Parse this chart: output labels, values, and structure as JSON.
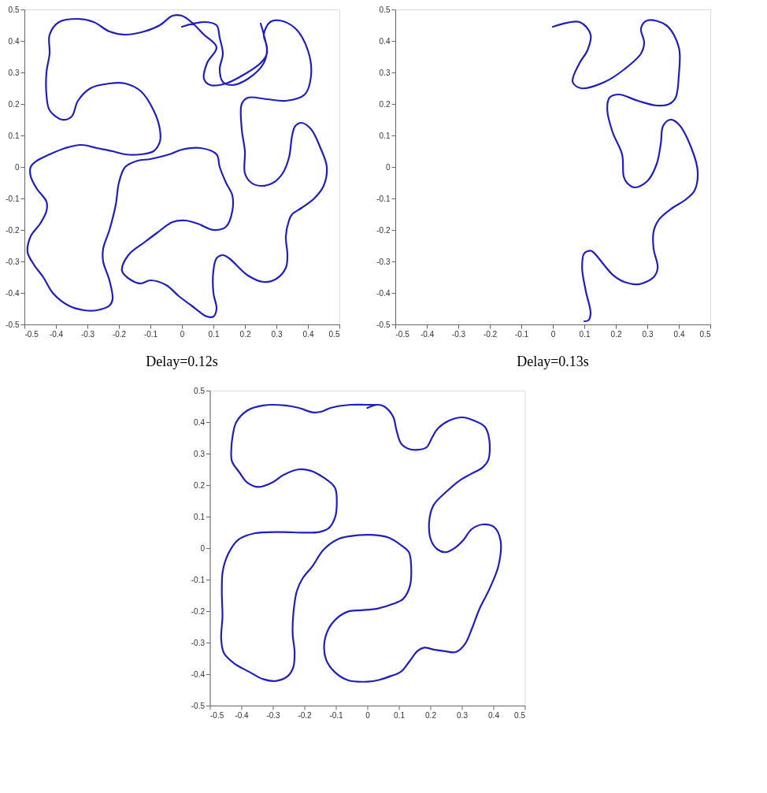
{
  "chart_data": [
    {
      "type": "line",
      "subtitle": "Delay=0.12s",
      "xlim": [
        -0.5,
        0.5
      ],
      "ylim": [
        -0.5,
        0.5
      ],
      "xticks": [
        -0.5,
        -0.4,
        -0.3,
        -0.2,
        -0.1,
        0,
        0.1,
        0.2,
        0.3,
        0.4,
        0.5
      ],
      "yticks": [
        -0.5,
        -0.4,
        -0.3,
        -0.2,
        -0.1,
        0,
        0.1,
        0.2,
        0.3,
        0.4,
        0.5
      ],
      "grid": false,
      "marker": "none",
      "line_style": "solid",
      "series": [
        {
          "color": "#1f1fc0",
          "x": [
            0.0,
            0.07,
            0.11,
            0.12,
            0.13,
            0.12,
            0.13,
            0.16,
            0.21,
            0.26,
            0.27,
            0.26,
            0.28,
            0.31,
            0.36,
            0.4,
            0.41,
            0.39,
            0.33,
            0.27,
            0.21,
            0.19,
            0.19,
            0.2,
            0.2,
            0.22,
            0.25,
            0.29,
            0.32,
            0.34,
            0.35,
            0.36,
            0.38,
            0.41,
            0.44,
            0.46,
            0.45,
            0.42,
            0.38,
            0.35,
            0.34,
            0.33,
            0.335,
            0.33,
            0.3,
            0.26,
            0.21,
            0.15,
            0.13,
            0.11,
            0.1,
            0.1,
            0.11,
            0.1,
            0.08,
            0.03,
            -0.01,
            -0.05,
            -0.1,
            -0.13,
            -0.16,
            -0.19,
            -0.17,
            -0.12,
            -0.08,
            -0.03,
            0.01,
            0.05,
            0.1,
            0.14,
            0.16,
            0.16,
            0.14,
            0.12,
            0.11,
            0.06,
            0.0,
            -0.04,
            -0.1,
            -0.14,
            -0.18,
            -0.2,
            -0.21,
            -0.23,
            -0.25,
            -0.25,
            -0.23,
            -0.22,
            -0.23,
            -0.27,
            -0.31,
            -0.36,
            -0.41,
            -0.44,
            -0.47,
            -0.49,
            -0.48,
            -0.45,
            -0.43,
            -0.43,
            -0.46,
            -0.48,
            -0.48,
            -0.46,
            -0.42,
            -0.37,
            -0.32,
            -0.27,
            -0.22,
            -0.18,
            -0.13,
            -0.09,
            -0.07,
            -0.07,
            -0.09,
            -0.13,
            -0.18,
            -0.23,
            -0.29,
            -0.33,
            -0.35,
            -0.38,
            -0.42,
            -0.43,
            -0.43,
            -0.42,
            -0.42,
            -0.39,
            -0.33,
            -0.28,
            -0.23,
            -0.18,
            -0.12,
            -0.07,
            -0.03,
            0.0,
            0.03,
            0.07,
            0.11,
            0.08,
            0.07,
            0.09,
            0.14,
            0.2,
            0.25,
            0.27,
            0.26,
            0.25
          ],
          "values": [
            0.445,
            0.46,
            0.45,
            0.41,
            0.36,
            0.31,
            0.27,
            0.26,
            0.28,
            0.33,
            0.38,
            0.42,
            0.46,
            0.465,
            0.44,
            0.37,
            0.29,
            0.23,
            0.21,
            0.215,
            0.22,
            0.2,
            0.12,
            0.05,
            -0.02,
            -0.05,
            -0.06,
            -0.05,
            -0.02,
            0.03,
            0.1,
            0.13,
            0.14,
            0.12,
            0.06,
            0.0,
            -0.06,
            -0.1,
            -0.13,
            -0.15,
            -0.17,
            -0.22,
            -0.28,
            -0.32,
            -0.355,
            -0.365,
            -0.345,
            -0.29,
            -0.28,
            -0.29,
            -0.33,
            -0.4,
            -0.45,
            -0.475,
            -0.475,
            -0.44,
            -0.41,
            -0.375,
            -0.36,
            -0.37,
            -0.36,
            -0.33,
            -0.28,
            -0.24,
            -0.21,
            -0.175,
            -0.17,
            -0.18,
            -0.2,
            -0.19,
            -0.14,
            -0.09,
            -0.05,
            0.0,
            0.04,
            0.06,
            0.055,
            0.04,
            0.025,
            0.02,
            0.0,
            -0.05,
            -0.12,
            -0.2,
            -0.26,
            -0.3,
            -0.36,
            -0.42,
            -0.44,
            -0.455,
            -0.455,
            -0.44,
            -0.4,
            -0.35,
            -0.31,
            -0.27,
            -0.22,
            -0.18,
            -0.14,
            -0.11,
            -0.07,
            -0.03,
            0.0,
            0.02,
            0.04,
            0.06,
            0.07,
            0.06,
            0.05,
            0.04,
            0.04,
            0.05,
            0.08,
            0.12,
            0.18,
            0.24,
            0.265,
            0.265,
            0.25,
            0.21,
            0.16,
            0.15,
            0.18,
            0.23,
            0.3,
            0.36,
            0.42,
            0.46,
            0.47,
            0.46,
            0.43,
            0.42,
            0.43,
            0.45,
            0.48,
            0.48,
            0.46,
            0.42,
            0.38,
            0.33,
            0.28,
            0.26,
            0.265,
            0.295,
            0.33,
            0.36,
            0.42,
            0.455
          ]
        }
      ]
    },
    {
      "type": "line",
      "subtitle": "Delay=0.13s",
      "xlim": [
        -0.5,
        0.5
      ],
      "ylim": [
        -0.5,
        0.5
      ],
      "xticks": [
        -0.5,
        -0.4,
        -0.3,
        -0.2,
        -0.1,
        0,
        0.1,
        0.2,
        0.3,
        0.4,
        0.5
      ],
      "yticks": [
        -0.5,
        -0.4,
        -0.3,
        -0.2,
        -0.1,
        0,
        0.1,
        0.2,
        0.3,
        0.4,
        0.5
      ],
      "grid": false,
      "marker": "none",
      "line_style": "solid",
      "series": [
        {
          "color": "#1f1fc0",
          "x": [
            0.0,
            0.085,
            0.12,
            0.11,
            0.085,
            0.063,
            0.09,
            0.165,
            0.227,
            0.28,
            0.29,
            0.28,
            0.3,
            0.36,
            0.4,
            0.4,
            0.39,
            0.37,
            0.33,
            0.27,
            0.21,
            0.18,
            0.173,
            0.19,
            0.22,
            0.225,
            0.235,
            0.26,
            0.3,
            0.33,
            0.343,
            0.35,
            0.373,
            0.4,
            0.44,
            0.46,
            0.45,
            0.42,
            0.38,
            0.337,
            0.32,
            0.32,
            0.333,
            0.32,
            0.274,
            0.227,
            0.19,
            0.132,
            0.12,
            0.1,
            0.093,
            0.105,
            0.12,
            0.113,
            0.1
          ],
          "values": [
            0.445,
            0.46,
            0.42,
            0.37,
            0.33,
            0.27,
            0.25,
            0.27,
            0.31,
            0.36,
            0.395,
            0.44,
            0.465,
            0.45,
            0.38,
            0.29,
            0.22,
            0.2,
            0.195,
            0.21,
            0.23,
            0.22,
            0.18,
            0.11,
            0.04,
            -0.03,
            -0.05,
            -0.065,
            -0.045,
            0.01,
            0.075,
            0.13,
            0.15,
            0.135,
            0.06,
            -0.015,
            -0.075,
            -0.105,
            -0.13,
            -0.167,
            -0.205,
            -0.26,
            -0.32,
            -0.35,
            -0.372,
            -0.365,
            -0.342,
            -0.274,
            -0.266,
            -0.274,
            -0.32,
            -0.395,
            -0.464,
            -0.487,
            -0.49
          ]
        }
      ]
    },
    {
      "type": "line",
      "xlim": [
        -0.5,
        0.5
      ],
      "ylim": [
        -0.5,
        0.5
      ],
      "xticks": [
        -0.5,
        -0.4,
        -0.3,
        -0.2,
        -0.1,
        0,
        0.1,
        0.2,
        0.3,
        0.4,
        0.5
      ],
      "yticks": [
        -0.5,
        -0.4,
        -0.3,
        -0.2,
        -0.1,
        0,
        0.1,
        0.2,
        0.3,
        0.4,
        0.5
      ],
      "grid": false,
      "marker": "none",
      "line_style": "solid",
      "series": [
        {
          "color": "#1f1fc0",
          "x": [
            0.0,
            0.032,
            0.053,
            0.082,
            0.092,
            0.107,
            0.131,
            0.16,
            0.188,
            0.206,
            0.224,
            0.26,
            0.302,
            0.338,
            0.373,
            0.387,
            0.384,
            0.366,
            0.33,
            0.295,
            0.252,
            0.21,
            0.196,
            0.203,
            0.224,
            0.249,
            0.281,
            0.306,
            0.331,
            0.366,
            0.402,
            0.423,
            0.416,
            0.388,
            0.356,
            0.331,
            0.309,
            0.281,
            0.245,
            0.21,
            0.181,
            0.16,
            0.132,
            0.107,
            0.075,
            0.039,
            0.0,
            -0.06,
            -0.103,
            -0.131,
            -0.137,
            -0.124,
            -0.096,
            -0.06,
            -0.018,
            0.032,
            0.082,
            0.114,
            0.135,
            0.139,
            0.132,
            0.11,
            0.068,
            0.011,
            -0.06,
            -0.096,
            -0.139,
            -0.174,
            -0.206,
            -0.224,
            -0.235,
            -0.237,
            -0.231,
            -0.235,
            -0.252,
            -0.292,
            -0.331,
            -0.373,
            -0.423,
            -0.455,
            -0.464,
            -0.46,
            -0.462,
            -0.459,
            -0.441,
            -0.409,
            -0.359,
            -0.274,
            -0.203,
            -0.153,
            -0.124,
            -0.103,
            -0.097,
            -0.103,
            -0.139,
            -0.181,
            -0.217,
            -0.267,
            -0.302,
            -0.345,
            -0.381,
            -0.406,
            -0.43,
            -0.432,
            -0.427,
            -0.416,
            -0.381,
            -0.331,
            -0.26,
            -0.217,
            -0.174,
            -0.146,
            -0.117,
            -0.053,
            -0.004,
            0.032
          ],
          "values": [
            0.445,
            0.455,
            0.45,
            0.417,
            0.376,
            0.332,
            0.315,
            0.312,
            0.32,
            0.352,
            0.38,
            0.405,
            0.415,
            0.405,
            0.385,
            0.345,
            0.28,
            0.256,
            0.236,
            0.216,
            0.18,
            0.136,
            0.08,
            0.023,
            -0.005,
            -0.013,
            0.003,
            0.027,
            0.06,
            0.075,
            0.067,
            0.023,
            -0.057,
            -0.129,
            -0.193,
            -0.258,
            -0.306,
            -0.33,
            -0.327,
            -0.322,
            -0.316,
            -0.326,
            -0.362,
            -0.392,
            -0.406,
            -0.418,
            -0.424,
            -0.42,
            -0.394,
            -0.354,
            -0.306,
            -0.258,
            -0.222,
            -0.201,
            -0.197,
            -0.192,
            -0.177,
            -0.161,
            -0.121,
            -0.057,
            -0.013,
            0.007,
            0.033,
            0.042,
            0.037,
            0.027,
            -0.005,
            -0.057,
            -0.097,
            -0.137,
            -0.209,
            -0.274,
            -0.33,
            -0.378,
            -0.406,
            -0.422,
            -0.416,
            -0.394,
            -0.366,
            -0.334,
            -0.29,
            -0.217,
            -0.137,
            -0.073,
            -0.017,
            0.027,
            0.047,
            0.051,
            0.049,
            0.051,
            0.062,
            0.096,
            0.144,
            0.192,
            0.224,
            0.246,
            0.25,
            0.232,
            0.208,
            0.194,
            0.208,
            0.24,
            0.276,
            0.312,
            0.36,
            0.4,
            0.437,
            0.453,
            0.453,
            0.445,
            0.431,
            0.433,
            0.445,
            0.455,
            0.455,
            0.455
          ]
        }
      ]
    }
  ]
}
